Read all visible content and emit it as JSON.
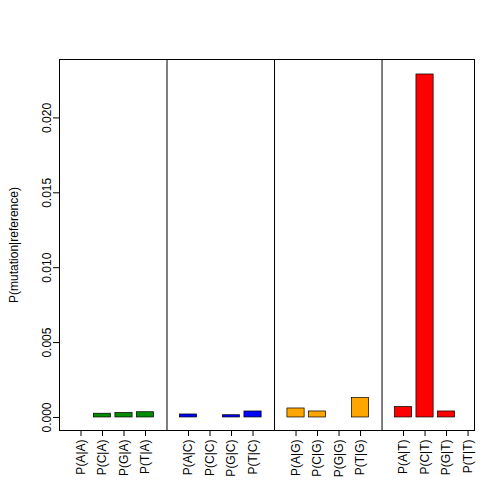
{
  "chart_data": {
    "type": "bar",
    "y_label": "P(mutation|reference)",
    "categories": [
      "P(A|A)",
      "P(C|A)",
      "P(G|A)",
      "P(T|A)",
      "P(A|C)",
      "P(C|C)",
      "P(G|C)",
      "P(T|C)",
      "P(A|G)",
      "P(C|G)",
      "P(G|G)",
      "P(T|G)",
      "P(A|T)",
      "P(C|T)",
      "P(G|T)",
      "P(T|T)"
    ],
    "values": [
      0,
      0.00025,
      0.0003,
      0.00035,
      0.0002,
      0,
      0.00015,
      0.0004,
      0.0006,
      0.0004,
      0,
      0.0013,
      0.0007,
      0.0229,
      0.0004,
      0
    ],
    "colors": [
      "#008B00",
      "#008B00",
      "#008B00",
      "#008B00",
      "#0000FF",
      "#0000FF",
      "#0000FF",
      "#0000FF",
      "#FFA500",
      "#FFA500",
      "#FFA500",
      "#FFA500",
      "#FF0000",
      "#FF0000",
      "#FF0000",
      "#FF0000"
    ],
    "ylim": [
      -0.00087,
      0.0239
    ],
    "yticks": [
      {
        "value": 0,
        "label": "0.000"
      },
      {
        "value": 0.005,
        "label": "0.005"
      },
      {
        "value": 0.01,
        "label": "0.010"
      },
      {
        "value": 0.015,
        "label": "0.015"
      },
      {
        "value": 0.02,
        "label": "0.020"
      }
    ],
    "grid": false
  }
}
